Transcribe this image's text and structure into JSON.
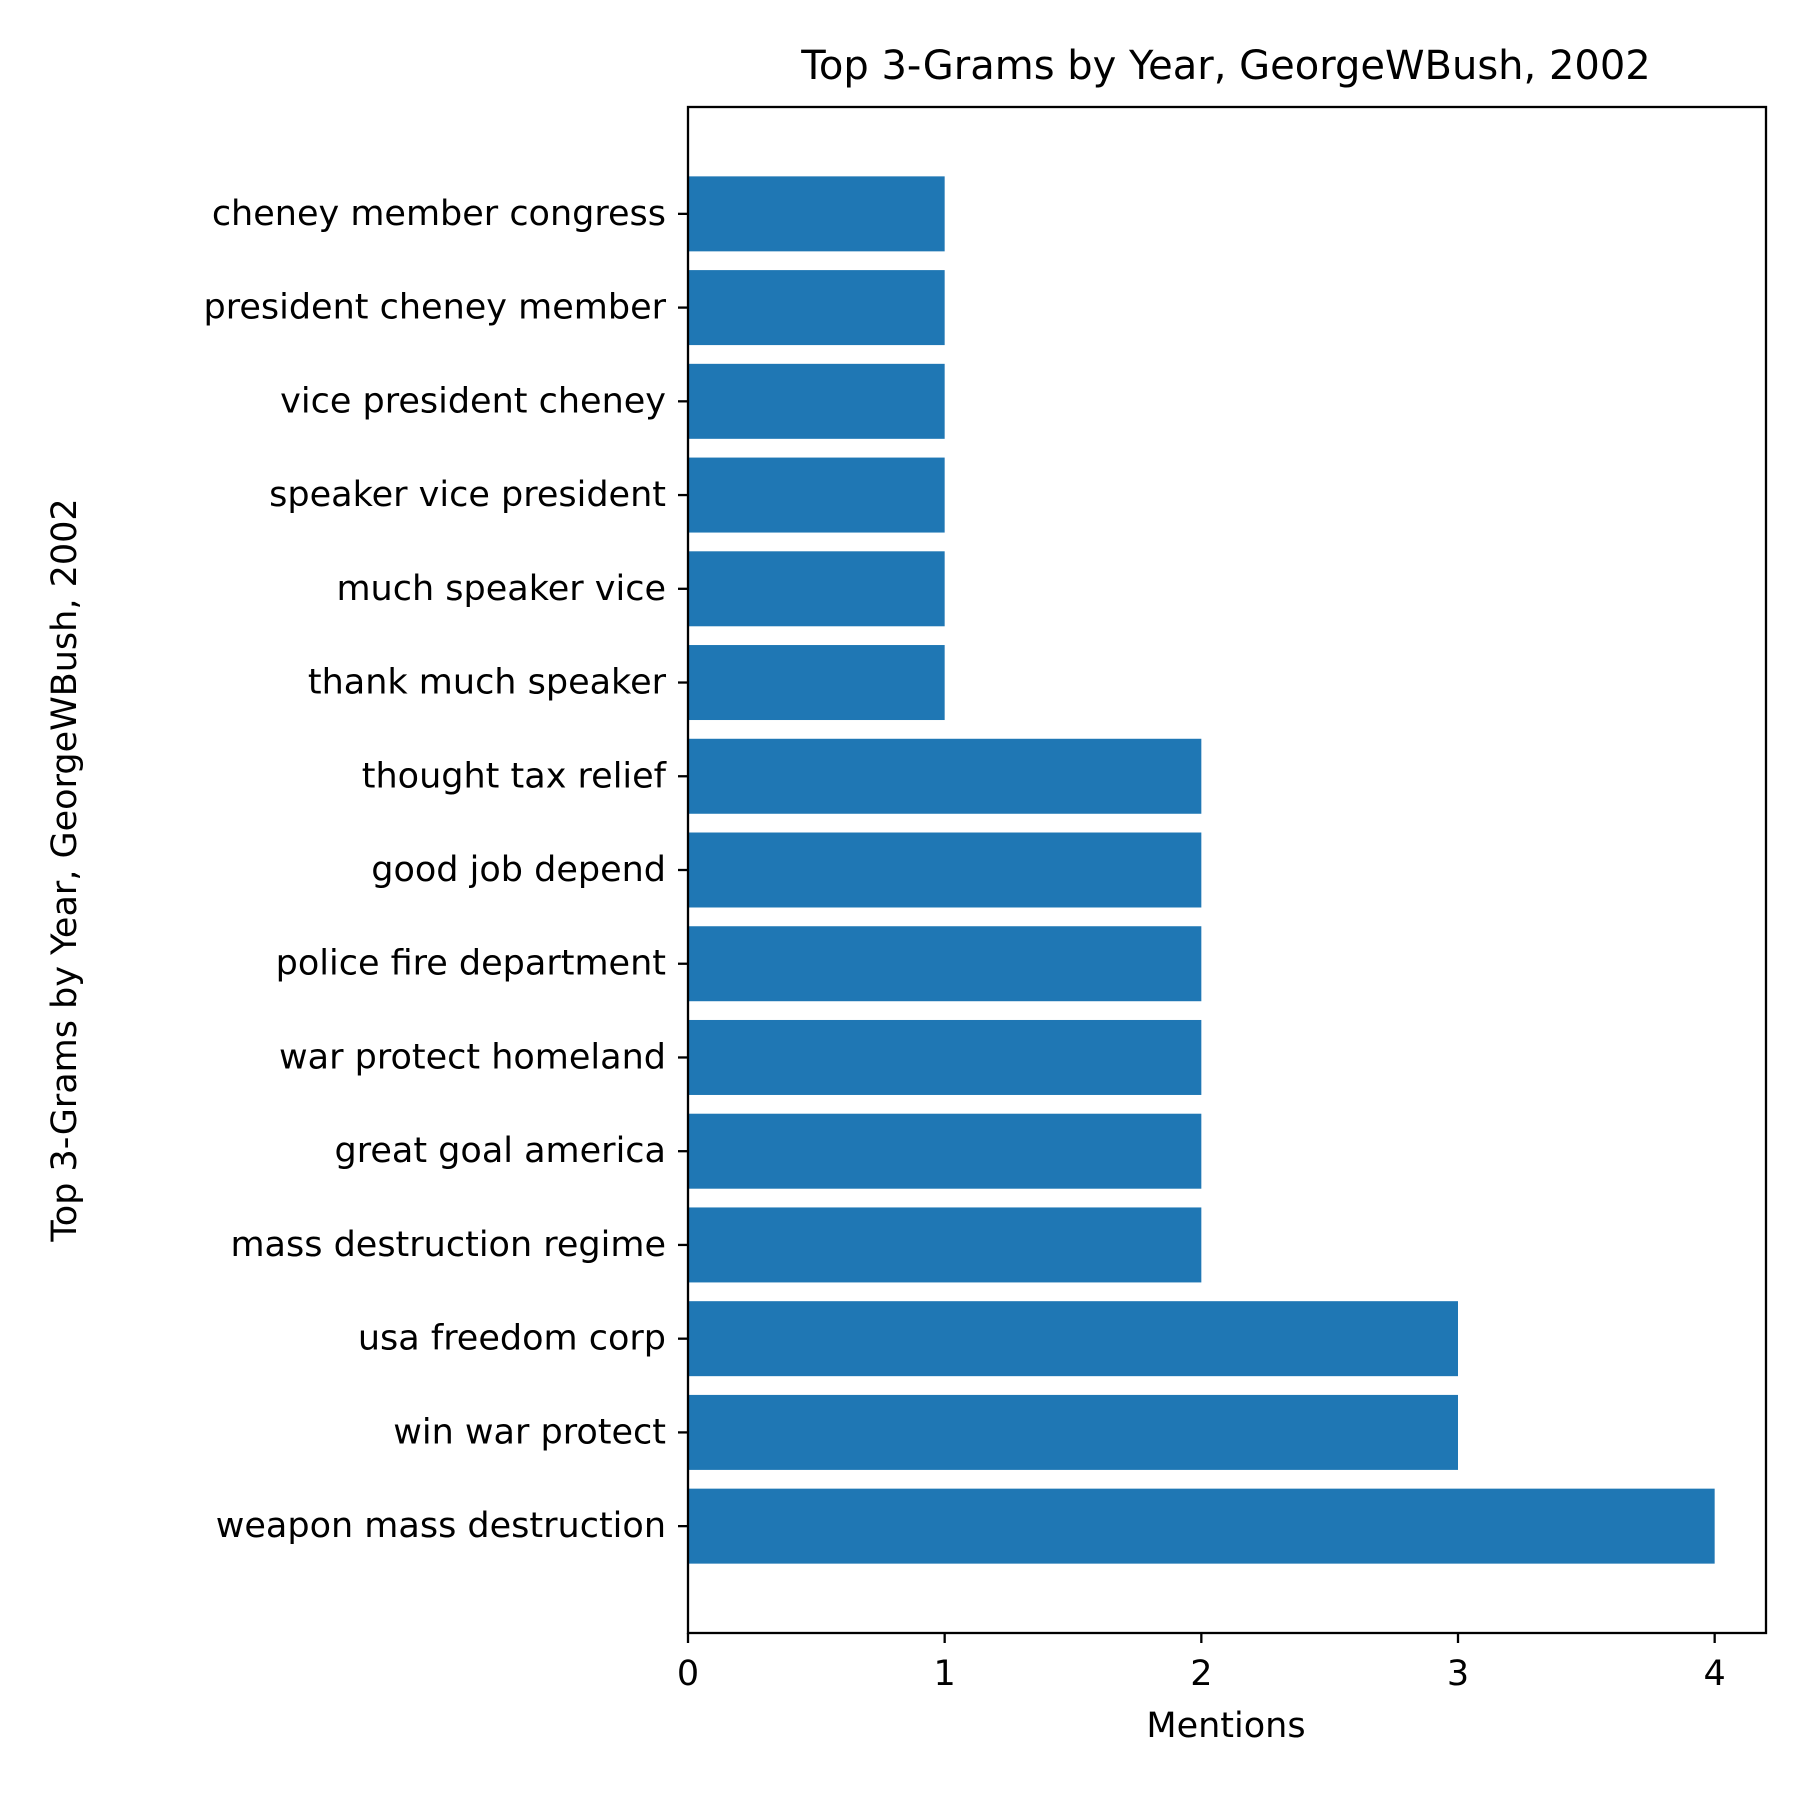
{
  "chart_data": {
    "type": "bar",
    "orientation": "horizontal",
    "title": "Top 3-Grams by Year, GeorgeWBush, 2002",
    "xlabel": "Mentions",
    "ylabel": "Top 3-Grams by Year, GeorgeWBush, 2002",
    "categories": [
      "weapon mass destruction",
      "win war protect",
      "usa freedom corp",
      "mass destruction regime",
      "great goal america",
      "war protect homeland",
      "police fire department",
      "good job depend",
      "thought tax relief",
      "thank much speaker",
      "much speaker vice",
      "speaker vice president",
      "vice president cheney",
      "president cheney member",
      "cheney member congress"
    ],
    "values": [
      4,
      3,
      3,
      2,
      2,
      2,
      2,
      2,
      2,
      1,
      1,
      1,
      1,
      1,
      1
    ],
    "xlim": [
      0,
      4.2
    ],
    "xticks": [
      0,
      1,
      2,
      3,
      4
    ],
    "xtick_labels": [
      "0",
      "1",
      "2",
      "3",
      "4"
    ],
    "grid": false,
    "bar_color": "#1f77b4"
  }
}
